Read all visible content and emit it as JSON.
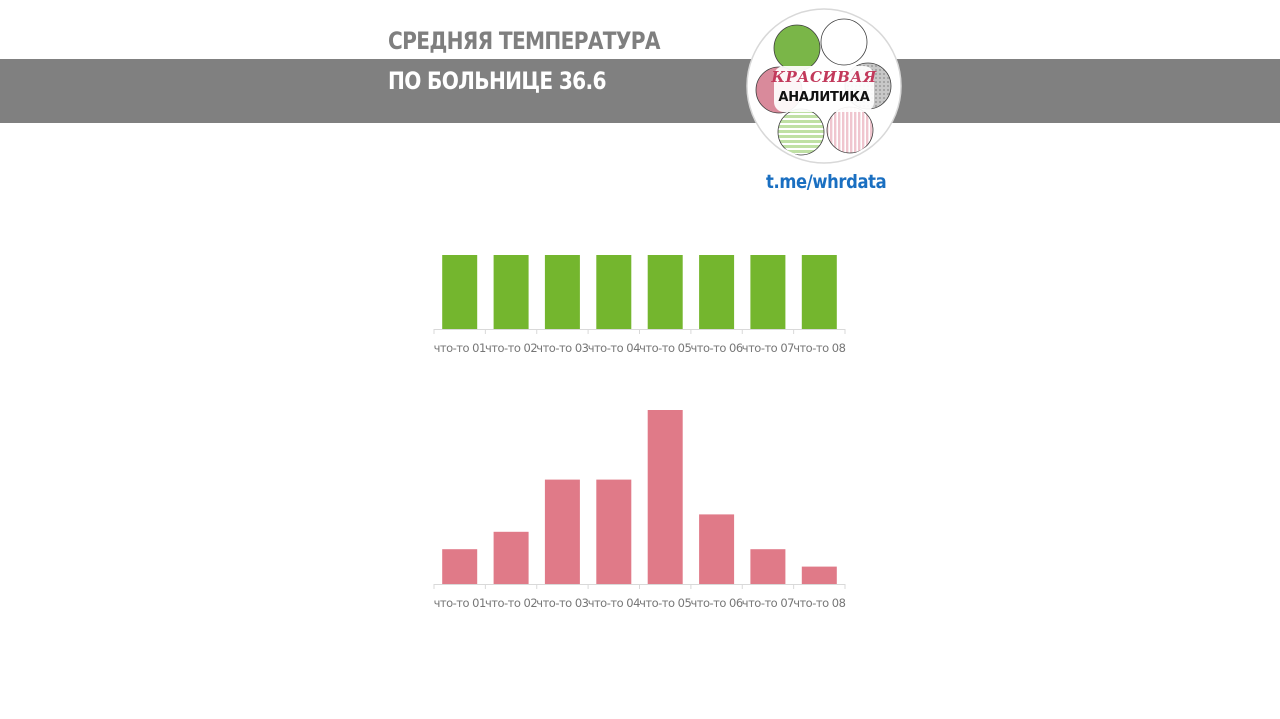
{
  "header": {
    "title_line_1": "СРЕДНЯЯ ТЕМПЕРАТУРА",
    "title_line_2": "ПО БОЛЬНИЦЕ 36.6"
  },
  "logo": {
    "line_1": "КРАСИВАЯ",
    "line_2": "АНАЛИТИКА",
    "colors": {
      "green": "#7ab648",
      "pink": "#d97e92",
      "gray": "#a8a8a8"
    }
  },
  "link": {
    "text": "t.me/whrdata"
  },
  "colors": {
    "band": "#808080",
    "title_top": "#7f7f7f",
    "green_bars": "#74b62e",
    "pink_bars": "#e07a88",
    "tick_label": "#767676",
    "axis": "#d9d9d9",
    "link": "#1a6fc1"
  },
  "chart_data": [
    {
      "type": "bar",
      "categories": [
        "что-то 01",
        "что-то 02",
        "что-то 03",
        "что-то 04",
        "что-то 05",
        "что-то 06",
        "что-то 07",
        "что-то 08"
      ],
      "values": [
        36.6,
        36.6,
        36.6,
        36.6,
        36.6,
        36.6,
        36.6,
        36.6
      ],
      "ylim": [
        0,
        36.6
      ],
      "color": "#74b62e",
      "grid": false,
      "legend": false
    },
    {
      "type": "bar",
      "categories": [
        "что-то 01",
        "что-то 02",
        "что-то 03",
        "что-то 04",
        "что-то 05",
        "что-то 06",
        "что-то 07",
        "что-то 08"
      ],
      "values": [
        2,
        3,
        6,
        6,
        10,
        4,
        2,
        1
      ],
      "ylim": [
        0,
        10
      ],
      "color": "#e07a88",
      "grid": false,
      "legend": false
    }
  ]
}
